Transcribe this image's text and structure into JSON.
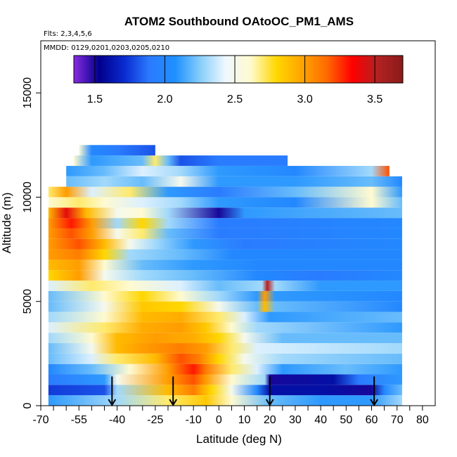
{
  "chart_data": {
    "type": "heatmap",
    "title": "ATOM2 Southbound OAtoOC_PM1_AMS",
    "subtitle": "Flts: 2,3,4,5,6",
    "annotation": "MMDD: 0129,0201,0203,0205,0210",
    "xlabel": "Latitude (deg N)",
    "ylabel": "Altitude (m)",
    "xlim": [
      -70,
      85
    ],
    "ylim": [
      0,
      17500
    ],
    "x_ticks": [
      -70,
      -65,
      -60,
      -55,
      -50,
      -45,
      -40,
      -35,
      -30,
      -25,
      -20,
      -15,
      -10,
      -5,
      0,
      5,
      10,
      15,
      20,
      25,
      30,
      35,
      40,
      45,
      50,
      55,
      60,
      65,
      70,
      75,
      80
    ],
    "x_tick_labels": [
      "-70",
      "",
      "",
      "-55",
      "",
      "",
      "-40",
      "",
      "",
      "-25",
      "",
      "",
      "-10",
      "",
      "0",
      "",
      "10",
      "",
      "20",
      "",
      "30",
      "",
      "40",
      "",
      "50",
      "",
      "60",
      "",
      "70",
      "",
      "80"
    ],
    "y_ticks": [
      0,
      5000,
      10000,
      15000
    ],
    "y_tick_labels": [
      "0",
      "5000",
      "10000",
      "15000"
    ],
    "colorbar": {
      "range": [
        1.35,
        3.7
      ],
      "ticks": [
        1.5,
        2.0,
        2.5,
        3.0,
        3.5
      ],
      "tick_labels": [
        "1.5",
        "2.0",
        "2.5",
        "3.0",
        "3.5"
      ],
      "colors": [
        "#8a2be2",
        "#00008b",
        "#0a2bd0",
        "#2b7bff",
        "#1e90ff",
        "#87cefa",
        "#f0f8ff",
        "#fffacd",
        "#ffd700",
        "#ffa500",
        "#ff6a00",
        "#ff0000",
        "#b22222",
        "#8b1a1a"
      ]
    },
    "flight_arrows_lat": [
      -42,
      -18,
      20,
      61
    ],
    "profile_rows": [
      {
        "alt_bottom": 0,
        "alt_top": 500,
        "lat_min": -67,
        "lat_max": 72,
        "knots": [
          [
            -67,
            2.1
          ],
          [
            -40,
            2.3
          ],
          [
            -20,
            2.7
          ],
          [
            -5,
            2.85
          ],
          [
            5,
            2.6
          ],
          [
            20,
            2.2
          ],
          [
            40,
            2.1
          ],
          [
            60,
            2.1
          ],
          [
            72,
            2.3
          ]
        ]
      },
      {
        "alt_bottom": 500,
        "alt_top": 1000,
        "lat_min": -67,
        "lat_max": 72,
        "knots": [
          [
            -67,
            1.75
          ],
          [
            -45,
            1.8
          ],
          [
            -40,
            2.3
          ],
          [
            -20,
            2.9
          ],
          [
            -10,
            3.1
          ],
          [
            -3,
            2.8
          ],
          [
            5,
            2.5
          ],
          [
            15,
            2.0
          ],
          [
            20,
            1.6
          ],
          [
            40,
            1.6
          ],
          [
            60,
            1.5
          ],
          [
            65,
            2.0
          ],
          [
            72,
            2.2
          ]
        ]
      },
      {
        "alt_bottom": 1000,
        "alt_top": 1500,
        "lat_min": -67,
        "lat_max": 72,
        "knots": [
          [
            -67,
            1.9
          ],
          [
            -45,
            2.1
          ],
          [
            -40,
            2.5
          ],
          [
            -20,
            3.0
          ],
          [
            -10,
            3.2
          ],
          [
            -5,
            3.0
          ],
          [
            5,
            2.6
          ],
          [
            18,
            2.3
          ],
          [
            20,
            1.5
          ],
          [
            45,
            1.6
          ],
          [
            55,
            1.9
          ],
          [
            72,
            2.1
          ]
        ]
      },
      {
        "alt_bottom": 1500,
        "alt_top": 2000,
        "lat_min": -67,
        "lat_max": 72,
        "knots": [
          [
            -67,
            2.0
          ],
          [
            -50,
            2.2
          ],
          [
            -35,
            2.6
          ],
          [
            -20,
            3.0
          ],
          [
            -10,
            3.3
          ],
          [
            -5,
            3.1
          ],
          [
            5,
            2.7
          ],
          [
            15,
            2.4
          ],
          [
            25,
            2.1
          ],
          [
            50,
            2.2
          ],
          [
            72,
            2.1
          ]
        ]
      },
      {
        "alt_bottom": 2000,
        "alt_top": 2500,
        "lat_min": -67,
        "lat_max": 72,
        "knots": [
          [
            -67,
            2.2
          ],
          [
            -50,
            2.4
          ],
          [
            -40,
            2.7
          ],
          [
            -25,
            2.9
          ],
          [
            -15,
            3.2
          ],
          [
            -8,
            3.1
          ],
          [
            0,
            2.8
          ],
          [
            10,
            2.5
          ],
          [
            25,
            2.3
          ],
          [
            72,
            2.2
          ]
        ]
      },
      {
        "alt_bottom": 2500,
        "alt_top": 3000,
        "lat_min": -67,
        "lat_max": 72,
        "knots": [
          [
            -67,
            2.2
          ],
          [
            -50,
            2.5
          ],
          [
            -40,
            2.9
          ],
          [
            -30,
            3.0
          ],
          [
            -15,
            3.1
          ],
          [
            -5,
            3.0
          ],
          [
            5,
            2.7
          ],
          [
            15,
            2.4
          ],
          [
            72,
            2.3
          ]
        ]
      },
      {
        "alt_bottom": 3000,
        "alt_top": 3500,
        "lat_min": -67,
        "lat_max": 72,
        "knots": [
          [
            -67,
            2.3
          ],
          [
            -50,
            2.6
          ],
          [
            -40,
            2.9
          ],
          [
            -25,
            3.0
          ],
          [
            -10,
            2.95
          ],
          [
            0,
            2.8
          ],
          [
            10,
            2.5
          ],
          [
            25,
            2.2
          ],
          [
            72,
            2.2
          ]
        ]
      },
      {
        "alt_bottom": 3500,
        "alt_top": 4000,
        "lat_min": -67,
        "lat_max": 72,
        "knots": [
          [
            -67,
            2.4
          ],
          [
            -45,
            2.7
          ],
          [
            -30,
            2.95
          ],
          [
            -15,
            3.0
          ],
          [
            -5,
            2.85
          ],
          [
            5,
            2.6
          ],
          [
            15,
            2.3
          ],
          [
            72,
            2.1
          ]
        ]
      },
      {
        "alt_bottom": 4000,
        "alt_top": 4500,
        "lat_min": -67,
        "lat_max": 72,
        "knots": [
          [
            -67,
            2.3
          ],
          [
            -45,
            2.6
          ],
          [
            -30,
            2.9
          ],
          [
            -15,
            2.95
          ],
          [
            0,
            2.7
          ],
          [
            10,
            2.4
          ],
          [
            20,
            2.1
          ],
          [
            72,
            2.2
          ]
        ]
      },
      {
        "alt_bottom": 4500,
        "alt_top": 5000,
        "lat_min": -67,
        "lat_max": 72,
        "knots": [
          [
            -67,
            2.2
          ],
          [
            -45,
            2.5
          ],
          [
            -30,
            2.85
          ],
          [
            -15,
            2.8
          ],
          [
            0,
            2.5
          ],
          [
            15,
            2.2
          ],
          [
            18,
            2.9
          ],
          [
            22,
            2.2
          ],
          [
            72,
            2.0
          ]
        ]
      },
      {
        "alt_bottom": 5000,
        "alt_top": 5500,
        "lat_min": -67,
        "lat_max": 72,
        "knots": [
          [
            -67,
            2.2
          ],
          [
            -45,
            2.6
          ],
          [
            -30,
            2.8
          ],
          [
            -15,
            2.6
          ],
          [
            0,
            2.3
          ],
          [
            15,
            2.1
          ],
          [
            18,
            3.0
          ],
          [
            22,
            2.1
          ],
          [
            72,
            2.0
          ]
        ]
      },
      {
        "alt_bottom": 5500,
        "alt_top": 6000,
        "lat_min": -67,
        "lat_max": 72,
        "knots": [
          [
            -67,
            2.4
          ],
          [
            -50,
            2.7
          ],
          [
            -35,
            2.6
          ],
          [
            -15,
            2.4
          ],
          [
            0,
            2.2
          ],
          [
            17,
            2.3
          ],
          [
            19,
            3.5
          ],
          [
            22,
            2.3
          ],
          [
            40,
            2.1
          ],
          [
            72,
            2.1
          ]
        ]
      },
      {
        "alt_bottom": 6000,
        "alt_top": 6500,
        "lat_min": -67,
        "lat_max": 72,
        "knots": [
          [
            -67,
            2.8
          ],
          [
            -55,
            3.0
          ],
          [
            -45,
            2.5
          ],
          [
            -30,
            2.3
          ],
          [
            -10,
            2.2
          ],
          [
            15,
            2.0
          ],
          [
            40,
            1.9
          ],
          [
            72,
            2.0
          ]
        ]
      },
      {
        "alt_bottom": 6500,
        "alt_top": 7000,
        "lat_min": -67,
        "lat_max": 72,
        "knots": [
          [
            -67,
            2.9
          ],
          [
            -55,
            3.0
          ],
          [
            -45,
            2.6
          ],
          [
            -30,
            2.2
          ],
          [
            -10,
            2.1
          ],
          [
            15,
            2.0
          ],
          [
            72,
            2.0
          ]
        ]
      },
      {
        "alt_bottom": 7000,
        "alt_top": 7500,
        "lat_min": -67,
        "lat_max": 72,
        "knots": [
          [
            -67,
            3.0
          ],
          [
            -55,
            3.1
          ],
          [
            -45,
            2.8
          ],
          [
            -35,
            2.3
          ],
          [
            -15,
            2.2
          ],
          [
            5,
            2.0
          ],
          [
            72,
            2.0
          ]
        ]
      },
      {
        "alt_bottom": 7500,
        "alt_top": 8000,
        "lat_min": -67,
        "lat_max": 72,
        "knots": [
          [
            -67,
            3.0
          ],
          [
            -55,
            3.2
          ],
          [
            -45,
            2.9
          ],
          [
            -35,
            2.5
          ],
          [
            -25,
            2.3
          ],
          [
            -10,
            2.1
          ],
          [
            10,
            1.9
          ],
          [
            72,
            2.0
          ]
        ]
      },
      {
        "alt_bottom": 8000,
        "alt_top": 8500,
        "lat_min": -67,
        "lat_max": 72,
        "knots": [
          [
            -67,
            3.0
          ],
          [
            -58,
            3.2
          ],
          [
            -50,
            3.0
          ],
          [
            -40,
            2.5
          ],
          [
            -30,
            2.7
          ],
          [
            -20,
            2.2
          ],
          [
            0,
            1.9
          ],
          [
            72,
            2.0
          ]
        ]
      },
      {
        "alt_bottom": 8500,
        "alt_top": 9000,
        "lat_min": -67,
        "lat_max": 72,
        "knots": [
          [
            -67,
            3.0
          ],
          [
            -58,
            3.3
          ],
          [
            -50,
            3.0
          ],
          [
            -40,
            2.3
          ],
          [
            -30,
            2.8
          ],
          [
            -20,
            2.3
          ],
          [
            0,
            1.9
          ],
          [
            72,
            2.0
          ]
        ]
      },
      {
        "alt_bottom": 9000,
        "alt_top": 9500,
        "lat_min": -67,
        "lat_max": 72,
        "knots": [
          [
            -67,
            2.9
          ],
          [
            -60,
            3.4
          ],
          [
            -52,
            2.9
          ],
          [
            -40,
            2.5
          ],
          [
            -30,
            2.6
          ],
          [
            -20,
            2.3
          ],
          [
            0,
            1.5
          ],
          [
            10,
            2.1
          ],
          [
            72,
            2.2
          ]
        ]
      },
      {
        "alt_bottom": 9500,
        "alt_top": 10000,
        "lat_min": -67,
        "lat_max": 72,
        "knots": [
          [
            -67,
            2.6
          ],
          [
            -55,
            2.7
          ],
          [
            -45,
            2.6
          ],
          [
            -30,
            2.4
          ],
          [
            -15,
            2.3
          ],
          [
            0,
            2.1
          ],
          [
            30,
            2.0
          ],
          [
            60,
            2.6
          ],
          [
            72,
            2.2
          ]
        ]
      },
      {
        "alt_bottom": 10000,
        "alt_top": 10500,
        "lat_min": -67,
        "lat_max": 72,
        "knots": [
          [
            -67,
            2.7
          ],
          [
            -60,
            3.0
          ],
          [
            -50,
            2.4
          ],
          [
            -35,
            2.7
          ],
          [
            -20,
            2.1
          ],
          [
            0,
            1.9
          ],
          [
            30,
            2.2
          ],
          [
            60,
            2.6
          ],
          [
            72,
            2.1
          ]
        ]
      },
      {
        "alt_bottom": 10500,
        "alt_top": 11000,
        "lat_min": -60,
        "lat_max": 72,
        "knots": [
          [
            -60,
            2.2
          ],
          [
            -45,
            2.3
          ],
          [
            -30,
            2.2
          ],
          [
            -15,
            2.5
          ],
          [
            0,
            2.1
          ],
          [
            30,
            2.1
          ],
          [
            60,
            2.2
          ],
          [
            72,
            2.0
          ]
        ]
      },
      {
        "alt_bottom": 11000,
        "alt_top": 11500,
        "lat_min": -60,
        "lat_max": 67,
        "knots": [
          [
            -60,
            2.1
          ],
          [
            -45,
            2.2
          ],
          [
            -30,
            2.4
          ],
          [
            -15,
            2.3
          ],
          [
            0,
            2.1
          ],
          [
            30,
            2.0
          ],
          [
            60,
            2.3
          ],
          [
            67,
            3.2
          ]
        ]
      },
      {
        "alt_bottom": 11500,
        "alt_top": 12000,
        "lat_min": -57,
        "lat_max": 27,
        "knots": [
          [
            -57,
            2.6
          ],
          [
            -50,
            2.1
          ],
          [
            -30,
            2.2
          ],
          [
            -25,
            2.7
          ],
          [
            -20,
            2.2
          ],
          [
            -15,
            1.8
          ],
          [
            0,
            1.9
          ],
          [
            27,
            1.9
          ]
        ]
      },
      {
        "alt_bottom": 12000,
        "alt_top": 12500,
        "lat_min": -55,
        "lat_max": -25,
        "knots": [
          [
            -55,
            2.6
          ],
          [
            -50,
            2.0
          ],
          [
            -40,
            1.9
          ],
          [
            -25,
            1.8
          ]
        ]
      }
    ]
  }
}
